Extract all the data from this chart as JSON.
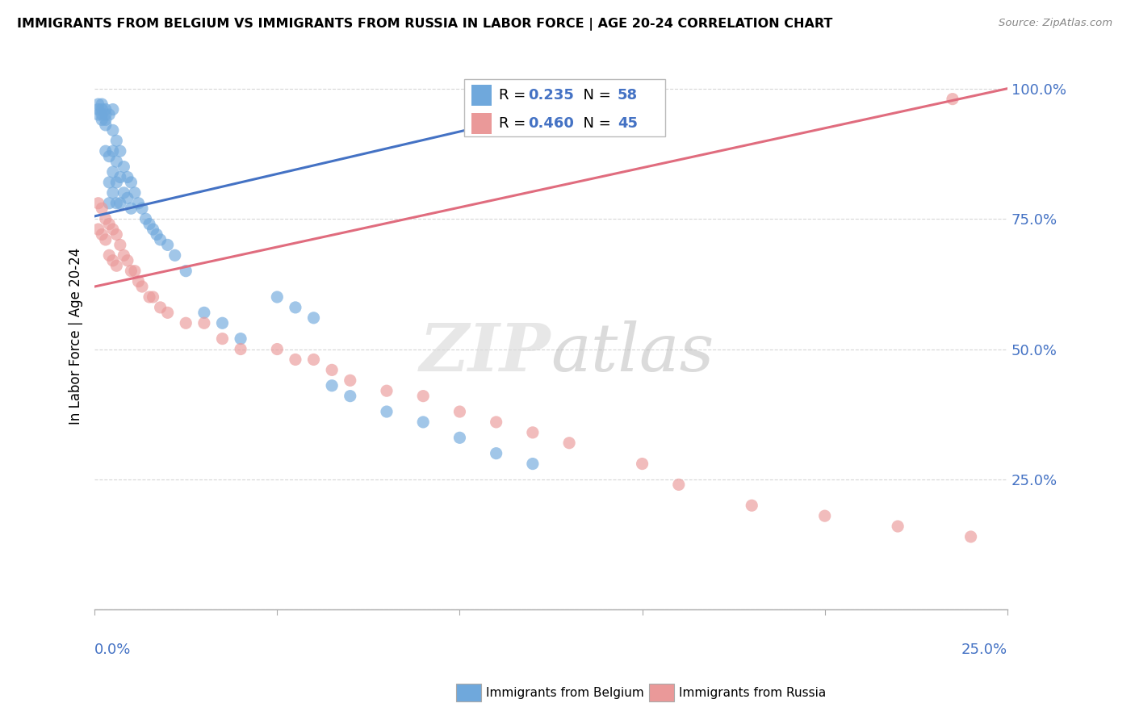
{
  "title": "IMMIGRANTS FROM BELGIUM VS IMMIGRANTS FROM RUSSIA IN LABOR FORCE | AGE 20-24 CORRELATION CHART",
  "source": "Source: ZipAtlas.com",
  "ylabel": "In Labor Force | Age 20-24",
  "xlim": [
    0.0,
    0.25
  ],
  "ylim": [
    0.0,
    1.05
  ],
  "belgium_color": "#6fa8dc",
  "russia_color": "#ea9999",
  "belgium_line_color": "#4472c4",
  "russia_line_color": "#e06c7e",
  "tick_color": "#4472c4",
  "grid_color": "#cccccc",
  "watermark_color": "#d0d0d0",
  "legend_box_color": "#dddddd",
  "bel_R": "0.235",
  "bel_N": "58",
  "rus_R": "0.460",
  "rus_N": "45",
  "belgium_x": [
    0.001,
    0.001,
    0.001,
    0.002,
    0.002,
    0.002,
    0.002,
    0.003,
    0.003,
    0.003,
    0.003,
    0.003,
    0.004,
    0.004,
    0.004,
    0.004,
    0.005,
    0.005,
    0.005,
    0.005,
    0.005,
    0.006,
    0.006,
    0.006,
    0.006,
    0.007,
    0.007,
    0.007,
    0.008,
    0.008,
    0.009,
    0.009,
    0.01,
    0.01,
    0.011,
    0.012,
    0.013,
    0.014,
    0.015,
    0.016,
    0.017,
    0.018,
    0.02,
    0.022,
    0.025,
    0.03,
    0.035,
    0.04,
    0.05,
    0.055,
    0.06,
    0.065,
    0.07,
    0.08,
    0.09,
    0.1,
    0.11,
    0.12
  ],
  "belgium_y": [
    0.97,
    0.96,
    0.95,
    0.97,
    0.96,
    0.95,
    0.94,
    0.96,
    0.95,
    0.94,
    0.93,
    0.88,
    0.95,
    0.87,
    0.82,
    0.78,
    0.96,
    0.92,
    0.88,
    0.84,
    0.8,
    0.9,
    0.86,
    0.82,
    0.78,
    0.88,
    0.83,
    0.78,
    0.85,
    0.8,
    0.83,
    0.79,
    0.82,
    0.77,
    0.8,
    0.78,
    0.77,
    0.75,
    0.74,
    0.73,
    0.72,
    0.71,
    0.7,
    0.68,
    0.65,
    0.57,
    0.55,
    0.52,
    0.6,
    0.58,
    0.56,
    0.43,
    0.41,
    0.38,
    0.36,
    0.33,
    0.3,
    0.28
  ],
  "russia_x": [
    0.001,
    0.001,
    0.002,
    0.002,
    0.003,
    0.003,
    0.004,
    0.004,
    0.005,
    0.005,
    0.006,
    0.006,
    0.007,
    0.008,
    0.009,
    0.01,
    0.011,
    0.012,
    0.013,
    0.015,
    0.016,
    0.018,
    0.02,
    0.025,
    0.03,
    0.035,
    0.04,
    0.05,
    0.055,
    0.06,
    0.065,
    0.07,
    0.08,
    0.09,
    0.1,
    0.11,
    0.12,
    0.13,
    0.15,
    0.16,
    0.18,
    0.2,
    0.22,
    0.235,
    0.24
  ],
  "russia_y": [
    0.78,
    0.73,
    0.77,
    0.72,
    0.75,
    0.71,
    0.74,
    0.68,
    0.73,
    0.67,
    0.72,
    0.66,
    0.7,
    0.68,
    0.67,
    0.65,
    0.65,
    0.63,
    0.62,
    0.6,
    0.6,
    0.58,
    0.57,
    0.55,
    0.55,
    0.52,
    0.5,
    0.5,
    0.48,
    0.48,
    0.46,
    0.44,
    0.42,
    0.41,
    0.38,
    0.36,
    0.34,
    0.32,
    0.28,
    0.24,
    0.2,
    0.18,
    0.16,
    0.98,
    0.14
  ],
  "bel_line_x": [
    0.0,
    0.12
  ],
  "bel_line_y": [
    0.755,
    0.95
  ],
  "rus_line_x": [
    0.0,
    0.25
  ],
  "rus_line_y": [
    0.62,
    1.0
  ]
}
